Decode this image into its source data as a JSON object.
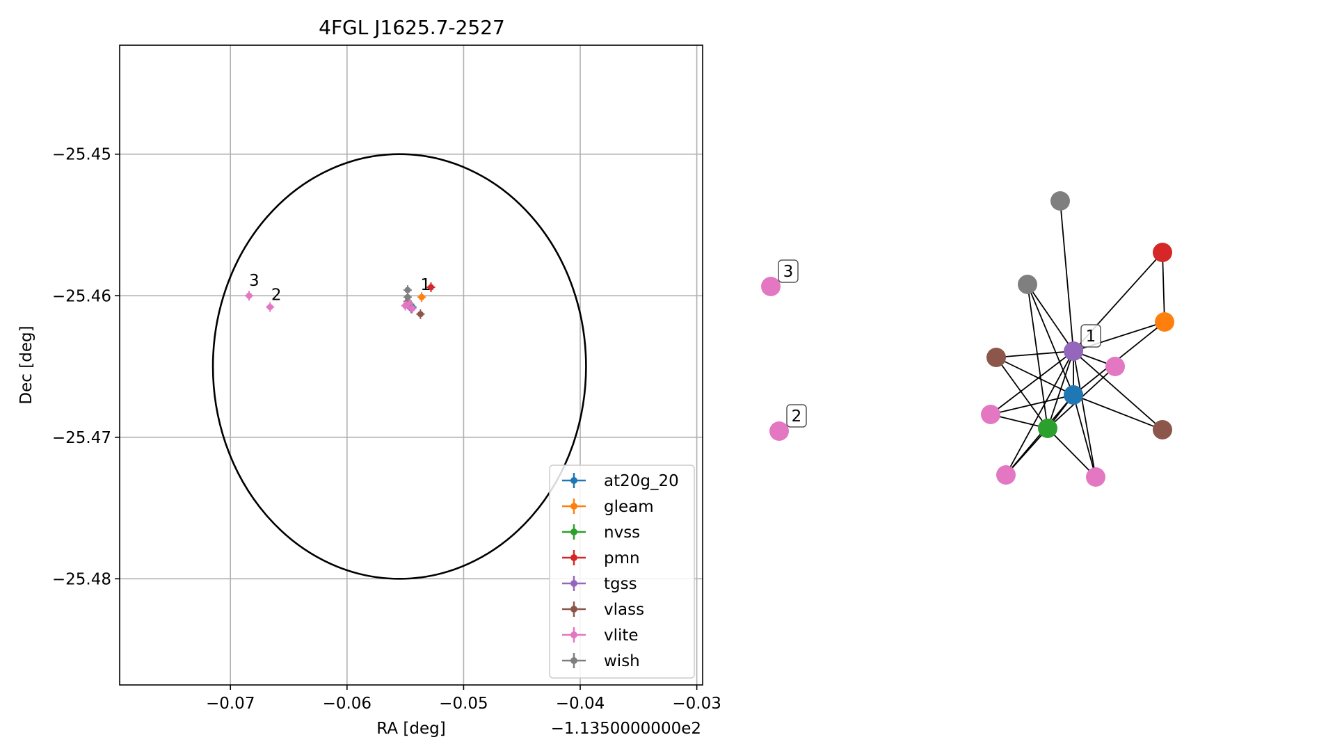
{
  "chart_data": [
    {
      "type": "scatter",
      "title": "4FGL J1625.7-2527",
      "xlabel": "RA [deg]",
      "ylabel": "Dec [deg]",
      "x_offset_label": "−1.1350000000e2",
      "xlim": [
        -0.0795,
        -0.0295
      ],
      "ylim": [
        -25.4875,
        -25.4423
      ],
      "xticks": [
        -0.07,
        -0.06,
        -0.05,
        -0.04,
        -0.03
      ],
      "xtick_labels": [
        "−0.07",
        "−0.06",
        "−0.05",
        "−0.04",
        "−0.03"
      ],
      "yticks": [
        -25.45,
        -25.46,
        -25.47,
        -25.48
      ],
      "ytick_labels": [
        "−25.45",
        "−25.46",
        "−25.47",
        "−25.48"
      ],
      "grid": true,
      "legend_position": "lower-right",
      "ellipse": {
        "center": [
          -0.0555,
          -25.465
        ],
        "semi_axes": [
          0.016,
          0.015
        ],
        "color": "#000000"
      },
      "series": [
        {
          "name": "at20g_20",
          "color": "#1f77b4",
          "points": [
            [
              -0.0544,
              -25.4608
            ]
          ]
        },
        {
          "name": "gleam",
          "color": "#ff7f0e",
          "points": [
            [
              -0.0536,
              -25.4601
            ]
          ]
        },
        {
          "name": "nvss",
          "color": "#2ca02c",
          "points": [
            [
              -0.0546,
              -25.4606
            ]
          ]
        },
        {
          "name": "pmn",
          "color": "#d62728",
          "points": [
            [
              -0.0528,
              -25.4594
            ]
          ]
        },
        {
          "name": "tgss",
          "color": "#9467bd",
          "points": [
            [
              -0.0545,
              -25.4609
            ]
          ]
        },
        {
          "name": "vlass",
          "color": "#8c564b",
          "points": [
            [
              -0.0548,
              -25.4604
            ],
            [
              -0.0537,
              -25.4613
            ]
          ]
        },
        {
          "name": "vlite",
          "color": "#e377c2",
          "points": [
            [
              -0.0684,
              -25.46
            ],
            [
              -0.0666,
              -25.4608
            ],
            [
              -0.055,
              -25.4607
            ],
            [
              -0.0547,
              -25.4605
            ],
            [
              -0.0544,
              -25.4609
            ]
          ]
        },
        {
          "name": "wish",
          "color": "#7f7f7f",
          "points": [
            [
              -0.0548,
              -25.4596
            ],
            [
              -0.0548,
              -25.4601
            ]
          ]
        }
      ],
      "annotations": [
        {
          "text": "1",
          "x": -0.0537,
          "y": -25.4596
        },
        {
          "text": "2",
          "x": -0.0665,
          "y": -25.4603
        },
        {
          "text": "3",
          "x": -0.0684,
          "y": -25.4593
        }
      ]
    },
    {
      "type": "network",
      "nodes": [
        {
          "id": "n3",
          "color": "#e377c2",
          "label": "3"
        },
        {
          "id": "n2",
          "color": "#e377c2",
          "label": "2"
        },
        {
          "id": "grayTop",
          "color": "#7f7f7f",
          "label": ""
        },
        {
          "id": "grayMid",
          "color": "#7f7f7f",
          "label": ""
        },
        {
          "id": "red",
          "color": "#d62728",
          "label": ""
        },
        {
          "id": "orange",
          "color": "#ff7f0e",
          "label": ""
        },
        {
          "id": "purple",
          "color": "#9467bd",
          "label": "1"
        },
        {
          "id": "brownL",
          "color": "#8c564b",
          "label": ""
        },
        {
          "id": "pinkR",
          "color": "#e377c2",
          "label": ""
        },
        {
          "id": "blue",
          "color": "#1f77b4",
          "label": ""
        },
        {
          "id": "pinkL",
          "color": "#e377c2",
          "label": ""
        },
        {
          "id": "green",
          "color": "#2ca02c",
          "label": ""
        },
        {
          "id": "brownR",
          "color": "#8c564b",
          "label": ""
        },
        {
          "id": "pinkBL",
          "color": "#e377c2",
          "label": ""
        },
        {
          "id": "pinkBR",
          "color": "#e377c2",
          "label": ""
        }
      ],
      "edges": [
        [
          "grayTop",
          "purple"
        ],
        [
          "red",
          "orange"
        ],
        [
          "red",
          "purple"
        ],
        [
          "orange",
          "purple"
        ],
        [
          "orange",
          "blue"
        ],
        [
          "grayMid",
          "purple"
        ],
        [
          "grayMid",
          "blue"
        ],
        [
          "grayMid",
          "green"
        ],
        [
          "brownL",
          "purple"
        ],
        [
          "brownL",
          "blue"
        ],
        [
          "brownL",
          "green"
        ],
        [
          "pinkR",
          "purple"
        ],
        [
          "pinkR",
          "green"
        ],
        [
          "pinkL",
          "purple"
        ],
        [
          "pinkL",
          "blue"
        ],
        [
          "pinkL",
          "green"
        ],
        [
          "purple",
          "blue"
        ],
        [
          "purple",
          "green"
        ],
        [
          "purple",
          "brownR"
        ],
        [
          "purple",
          "pinkBR"
        ],
        [
          "purple",
          "pinkBL"
        ],
        [
          "blue",
          "green"
        ],
        [
          "blue",
          "brownR"
        ],
        [
          "blue",
          "pinkBR"
        ],
        [
          "blue",
          "pinkBL"
        ],
        [
          "green",
          "pinkBR"
        ],
        [
          "green",
          "pinkBL"
        ]
      ]
    }
  ]
}
